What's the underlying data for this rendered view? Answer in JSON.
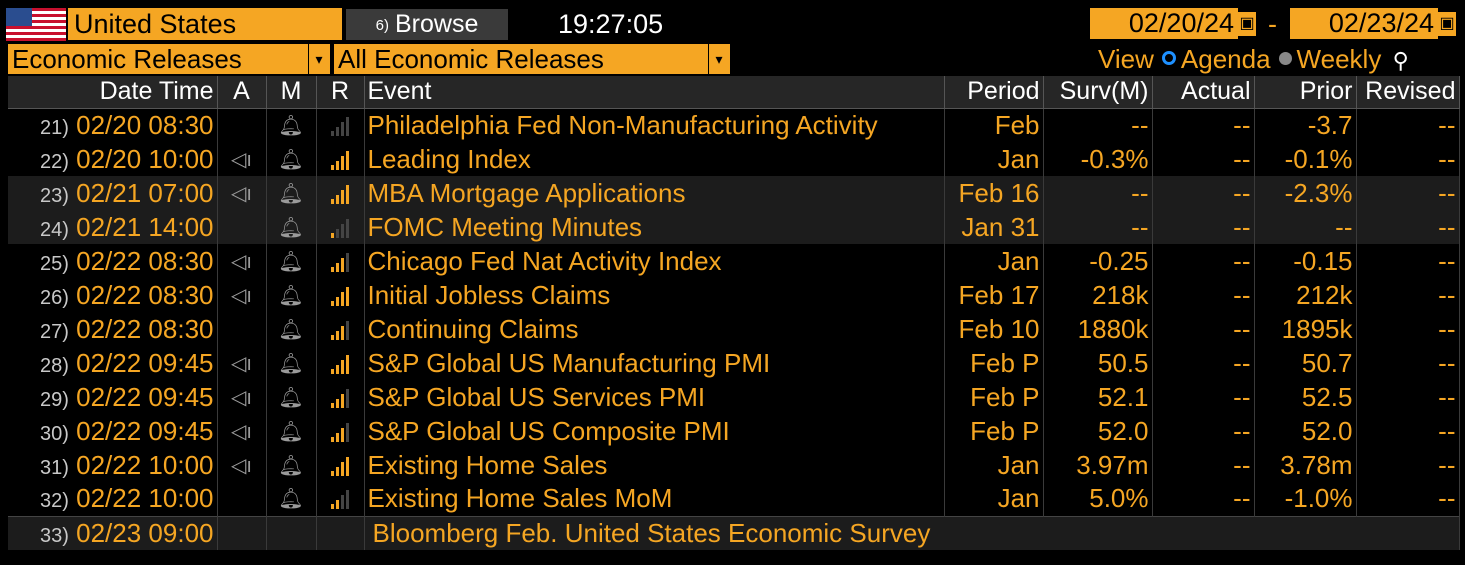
{
  "toolbar": {
    "country": "United States",
    "browse_label": "Browse",
    "browse_icon": "6)",
    "time": "19:27:05",
    "date_from": "02/20/24",
    "date_sep": "-",
    "date_to": "02/23/24"
  },
  "filters": {
    "category": "Economic Releases",
    "subcategory": "All Economic Releases",
    "view_label": "View",
    "view_agenda": "Agenda",
    "view_weekly": "Weekly",
    "dropdown_icon": "▾"
  },
  "columns": [
    "Date Time",
    "A",
    "M",
    "R",
    "Event",
    "Period",
    "Surv(M)",
    "Actual",
    "Prior",
    "Revised"
  ],
  "colors": {
    "accent": "#f5a623",
    "background": "#000000",
    "header_bg": "#262626"
  },
  "rows": [
    {
      "num": "21)",
      "datetime": "02/20 08:30",
      "alert": false,
      "relevance": 0,
      "event": "Philadelphia Fed Non-Manufacturing Activity",
      "period": "Feb",
      "surv": "--",
      "actual": "--",
      "prior": "-3.7",
      "revised": "--"
    },
    {
      "num": "22)",
      "datetime": "02/20 10:00",
      "alert": true,
      "relevance": 4,
      "event": "Leading Index",
      "period": "Jan",
      "surv": "-0.3%",
      "actual": "--",
      "prior": "-0.1%",
      "revised": "--"
    },
    {
      "num": "23)",
      "datetime": "02/21 07:00",
      "alert": true,
      "relevance": 4,
      "event": "MBA Mortgage Applications",
      "period": "Feb 16",
      "surv": "--",
      "actual": "--",
      "prior": "-2.3%",
      "revised": "--"
    },
    {
      "num": "24)",
      "datetime": "02/21 14:00",
      "alert": false,
      "relevance": 1,
      "event": "FOMC Meeting Minutes",
      "period": "Jan 31",
      "surv": "--",
      "actual": "--",
      "prior": "--",
      "revised": "--"
    },
    {
      "num": "25)",
      "datetime": "02/22 08:30",
      "alert": true,
      "relevance": 3,
      "event": "Chicago Fed Nat Activity Index",
      "period": "Jan",
      "surv": "-0.25",
      "actual": "--",
      "prior": "-0.15",
      "revised": "--"
    },
    {
      "num": "26)",
      "datetime": "02/22 08:30",
      "alert": true,
      "relevance": 4,
      "event": "Initial Jobless Claims",
      "period": "Feb 17",
      "surv": "218k",
      "actual": "--",
      "prior": "212k",
      "revised": "--"
    },
    {
      "num": "27)",
      "datetime": "02/22 08:30",
      "alert": false,
      "relevance": 3,
      "event": "Continuing Claims",
      "period": "Feb 10",
      "surv": "1880k",
      "actual": "--",
      "prior": "1895k",
      "revised": "--"
    },
    {
      "num": "28)",
      "datetime": "02/22 09:45",
      "alert": true,
      "relevance": 4,
      "event": "S&P Global US Manufacturing PMI",
      "period": "Feb P",
      "surv": "50.5",
      "actual": "--",
      "prior": "50.7",
      "revised": "--"
    },
    {
      "num": "29)",
      "datetime": "02/22 09:45",
      "alert": true,
      "relevance": 3,
      "event": "S&P Global US Services PMI",
      "period": "Feb P",
      "surv": "52.1",
      "actual": "--",
      "prior": "52.5",
      "revised": "--"
    },
    {
      "num": "30)",
      "datetime": "02/22 09:45",
      "alert": true,
      "relevance": 3,
      "event": "S&P Global US Composite PMI",
      "period": "Feb P",
      "surv": "52.0",
      "actual": "--",
      "prior": "52.0",
      "revised": "--"
    },
    {
      "num": "31)",
      "datetime": "02/22 10:00",
      "alert": true,
      "relevance": 4,
      "event": "Existing Home Sales",
      "period": "Jan",
      "surv": "3.97m",
      "actual": "--",
      "prior": "3.78m",
      "revised": "--"
    },
    {
      "num": "32)",
      "datetime": "02/22 10:00",
      "alert": false,
      "relevance": 2,
      "event": "Existing Home Sales MoM",
      "period": "Jan",
      "surv": "5.0%",
      "actual": "--",
      "prior": "-1.0%",
      "revised": "--"
    }
  ],
  "footer_row": {
    "num": "33)",
    "datetime": "02/23 09:00",
    "event": "Bloomberg Feb. United States Economic Survey"
  }
}
